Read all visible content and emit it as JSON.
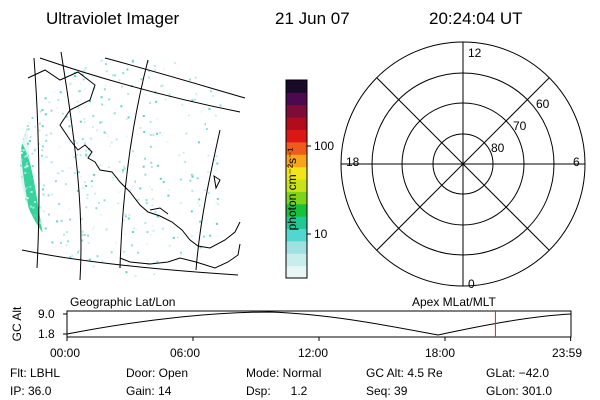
{
  "header": {
    "instrument": "Ultraviolet Imager",
    "date": "21 Jun 07",
    "time": "20:24:04 UT"
  },
  "colorbar": {
    "unit_label": "photon cm⁻²s⁻¹",
    "ticks": [
      "100",
      "10"
    ],
    "colors": [
      "#e9f6f6",
      "#c9ecec",
      "#9fe0e0",
      "#53d6cf",
      "#22c892",
      "#1dbe3b",
      "#7fd419",
      "#c9e21a",
      "#f1e31c",
      "#f7a51d",
      "#ef5b1a",
      "#dd1616",
      "#b20c1c",
      "#7e0c38",
      "#4b0a4f",
      "#1a0a2a"
    ]
  },
  "polar_plot": {
    "label_top": "12",
    "label_left": "18",
    "label_right": "6",
    "label_bottom": "0",
    "ring_labels": [
      "60",
      "70",
      "80"
    ]
  },
  "timeline": {
    "left_label": "Geographic Lat/Lon",
    "right_label": "Apex MLat/MLT",
    "y_axis_label": "GC Alt",
    "y_ticks": [
      "9.0",
      "1.8"
    ],
    "x_ticks": [
      "00:00",
      "06:00",
      "12:00",
      "18:00",
      "23:59"
    ],
    "current_time_hours": 20.4
  },
  "status": {
    "flt": "Flt: LBHL",
    "ip": "IP: 36.0",
    "door": "Door: Open",
    "gain": "Gain: 14",
    "mode": "Mode: Normal",
    "dsp": "Dsp:      1.2",
    "gc_alt": "GC Alt: 4.5 Re",
    "seq": "Seq: 39",
    "glat": "GLat: −42.0",
    "glon": "GLon: 301.0"
  }
}
